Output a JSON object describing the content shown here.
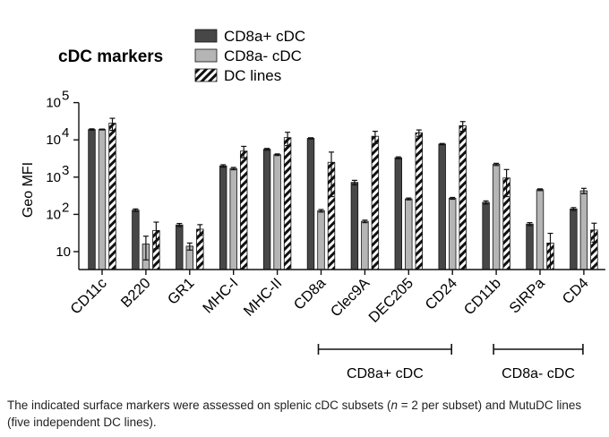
{
  "chart_data": {
    "type": "bar",
    "title": "cDC markers",
    "ylabel": "Geo MFI",
    "yscale": "log",
    "ylim": [
      4,
      100000
    ],
    "yticks": [
      {
        "value": 10,
        "base": "10",
        "exp": ""
      },
      {
        "value": 100,
        "base": "10",
        "exp": "2"
      },
      {
        "value": 1000,
        "base": "10",
        "exp": "3"
      },
      {
        "value": 10000,
        "base": "10",
        "exp": "4"
      },
      {
        "value": 100000,
        "base": "10",
        "exp": "5"
      }
    ],
    "categories": [
      "CD11c",
      "B220",
      "GR1",
      "MHC-I",
      "MHC-II",
      "CD8a",
      "Clec9A",
      "DEC205",
      "CD24",
      "CD11b",
      "SIRPa",
      "CD4"
    ],
    "series": [
      {
        "name": "CD8a+ cDC",
        "fill": "solid-dark",
        "values": [
          19000,
          130,
          52,
          2000,
          5600,
          11000,
          720,
          3300,
          7700,
          210,
          55,
          140
        ],
        "err": [
          800,
          10,
          5,
          150,
          300,
          400,
          100,
          200,
          300,
          20,
          5,
          12
        ]
      },
      {
        "name": "CD8a- cDC",
        "fill": "solid-light",
        "values": [
          19000,
          16,
          14,
          1700,
          4000,
          125,
          65,
          260,
          270,
          2200,
          460,
          430
        ],
        "err": [
          500,
          10,
          3,
          120,
          200,
          10,
          5,
          15,
          15,
          150,
          25,
          70
        ]
      },
      {
        "name": "DC lines",
        "fill": "hatched",
        "values": [
          28000,
          37,
          40,
          5000,
          11500,
          2500,
          12500,
          15500,
          24000,
          950,
          17,
          38
        ],
        "err": [
          10000,
          25,
          13,
          1700,
          4500,
          2200,
          4500,
          3000,
          7000,
          650,
          14,
          20
        ]
      }
    ],
    "groups": [
      {
        "label": "CD8a+ cDC",
        "from": "CD8a",
        "to": "CD24"
      },
      {
        "label": "CD8a- cDC",
        "from": "CD11b",
        "to": "CD4"
      }
    ],
    "legend_position": "top",
    "grid": false,
    "colors": {
      "dark": "#474747",
      "light": "#b5b5b5",
      "hatch": "#111111"
    }
  },
  "caption": {
    "part1": "The indicated surface markers were assessed on splenic cDC subsets (",
    "n_symbol": "n",
    "part2": " = 2 per subset) and MutuDC lines (five independent DC lines)."
  }
}
